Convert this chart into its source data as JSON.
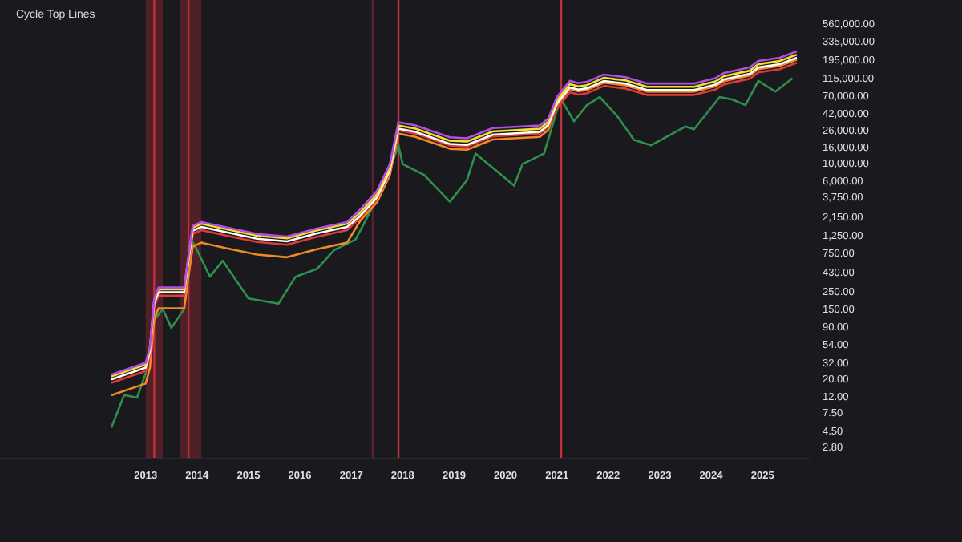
{
  "chart_data": {
    "type": "line",
    "title": "Cycle Top Lines",
    "x": [
      "2012-05",
      "2013-01",
      "2013-02",
      "2013-03",
      "2013-04",
      "2013-10",
      "2013-11",
      "2013-12",
      "2014-02",
      "2014-08",
      "2015-03",
      "2015-10",
      "2016-05",
      "2016-12",
      "2017-03",
      "2017-07",
      "2017-10",
      "2017-12",
      "2018-04",
      "2018-12",
      "2019-04",
      "2019-10",
      "2020-09",
      "2020-11",
      "2021-01",
      "2021-04",
      "2021-06",
      "2021-08",
      "2021-12",
      "2022-05",
      "2022-10",
      "2023-09",
      "2024-02",
      "2024-04",
      "2024-10",
      "2024-12",
      "2025-05",
      "2025-09"
    ],
    "series": [
      {
        "color": "#2f8f4e",
        "x": [
          "2012-05",
          "2012-08",
          "2012-11",
          "2013-01",
          "2013-03",
          "2013-05",
          "2013-07",
          "2013-10",
          "2013-12",
          "2014-01",
          "2014-04",
          "2014-07",
          "2015-01",
          "2015-08",
          "2015-12",
          "2016-05",
          "2016-09",
          "2017-02",
          "2017-06",
          "2017-09",
          "2017-12",
          "2018-01",
          "2018-06",
          "2018-12",
          "2019-04",
          "2019-06",
          "2019-12",
          "2020-03",
          "2020-05",
          "2020-10",
          "2021-01",
          "2021-02",
          "2021-05",
          "2021-08",
          "2021-11",
          "2022-03",
          "2022-07",
          "2022-11",
          "2023-07",
          "2023-09",
          "2024-03",
          "2024-06",
          "2024-09",
          "2024-12",
          "2025-04",
          "2025-08"
        ],
        "values": [
          4.9,
          12.5,
          11.6,
          23.3,
          109,
          149,
          86.7,
          149,
          1030,
          815,
          378,
          600,
          202,
          174,
          378,
          475,
          815,
          1110,
          2820,
          5800,
          16700,
          9730,
          7130,
          3280,
          6110,
          13200,
          7130,
          5220,
          9730,
          13200,
          45600,
          62200,
          33400,
          53200,
          67100,
          39200,
          19500,
          16700,
          28700,
          26500,
          67100,
          62200,
          53200,
          107000,
          78500,
          115600
        ]
      },
      {
        "color": "#f08a24",
        "values": [
          12.4,
          17.4,
          27.5,
          111,
          152,
          152,
          385,
          902,
          1010,
          858,
          715,
          663,
          836,
          1010,
          1870,
          3230,
          7010,
          23400,
          21300,
          15100,
          14700,
          19700,
          21300,
          26000,
          53000,
          84500,
          79000,
          82200,
          101500,
          94000,
          78300,
          78300,
          91300,
          106300,
          124700,
          149900,
          164600,
          198000
        ]
      },
      {
        "color": "#e23a3a",
        "values": [
          17.8,
          25,
          39.5,
          160,
          219,
          219,
          553,
          1300,
          1450,
          1230,
          1030,
          952,
          1200,
          1450,
          2050,
          3540,
          7690,
          25700,
          23400,
          16600,
          16100,
          21600,
          23400,
          28500,
          48300,
          77000,
          72000,
          74900,
          92500,
          85700,
          71400,
          71400,
          83200,
          96900,
          113600,
          136600,
          150000,
          180400
        ]
      },
      {
        "color": "#ffffff",
        "values": [
          19.6,
          27.5,
          43.5,
          176,
          241,
          241,
          609,
          1430,
          1590,
          1360,
          1130,
          1050,
          1320,
          1590,
          2160,
          3720,
          8080,
          27000,
          24600,
          17400,
          16900,
          22700,
          24600,
          30000,
          55700,
          88800,
          83000,
          86300,
          106700,
          98800,
          82300,
          82300,
          95900,
          111700,
          131000,
          157500,
          173000,
          208000
        ]
      },
      {
        "color": "#f2e22a",
        "values": [
          21.4,
          30,
          47.5,
          192,
          263,
          263,
          665,
          1560,
          1740,
          1480,
          1235,
          1145,
          1440,
          1740,
          2370,
          4080,
          8850,
          29600,
          26900,
          19100,
          18600,
          24900,
          26900,
          32900,
          61100,
          97400,
          91000,
          94600,
          116900,
          108300,
          90200,
          90200,
          105200,
          122500,
          143600,
          172600,
          189600,
          228000
        ]
      },
      {
        "color": "#b44de6",
        "values": [
          22.5,
          31.6,
          50,
          202,
          277,
          277,
          700,
          1640,
          1830,
          1560,
          1300,
          1205,
          1520,
          1830,
          2600,
          4480,
          9730,
          32500,
          29600,
          21000,
          20400,
          27400,
          29600,
          36100,
          67100,
          107000,
          100000,
          104000,
          128500,
          119000,
          99100,
          99100,
          115600,
          134600,
          157800,
          189700,
          208400,
          250600
        ]
      }
    ],
    "log": true,
    "xlim": [
      "2010-03",
      "2025-12"
    ],
    "xticks": [
      "2013",
      "2014",
      "2015",
      "2016",
      "2017",
      "2018",
      "2019",
      "2020",
      "2021",
      "2022",
      "2023",
      "2024",
      "2025"
    ],
    "ylim": [
      2,
      1100000
    ],
    "yticks": [
      {
        "value": 2.8,
        "label": "2.80"
      },
      {
        "value": 4.5,
        "label": "4.50"
      },
      {
        "value": 7.5,
        "label": "7.50"
      },
      {
        "value": 12,
        "label": "12.00"
      },
      {
        "value": 20,
        "label": "20.00"
      },
      {
        "value": 32,
        "label": "32.00"
      },
      {
        "value": 54,
        "label": "54.00"
      },
      {
        "value": 90,
        "label": "90.00"
      },
      {
        "value": 150,
        "label": "150.00"
      },
      {
        "value": 250,
        "label": "250.00"
      },
      {
        "value": 430,
        "label": "430.00"
      },
      {
        "value": 750,
        "label": "750.00"
      },
      {
        "value": 1250,
        "label": "1,250.00"
      },
      {
        "value": 2150,
        "label": "2,150.00"
      },
      {
        "value": 3750,
        "label": "3,750.00"
      },
      {
        "value": 6000,
        "label": "6,000.00"
      },
      {
        "value": 10000,
        "label": "10,000.00"
      },
      {
        "value": 16000,
        "label": "16,000.00"
      },
      {
        "value": 26000,
        "label": "26,000.00"
      },
      {
        "value": 42000,
        "label": "42,000.00"
      },
      {
        "value": 70000,
        "label": "70,000.00"
      },
      {
        "value": 115000,
        "label": "115,000.00"
      },
      {
        "value": 195000,
        "label": "195,000.00"
      },
      {
        "value": 335000,
        "label": "335,000.00"
      },
      {
        "value": 560000,
        "label": "560,000.00"
      }
    ],
    "bands": [
      {
        "axis": "x",
        "from": "2013-01",
        "to": "2013-05",
        "color": "#5e2229"
      },
      {
        "axis": "x",
        "from": "2013-09",
        "to": "2014-02",
        "color": "#5e2229"
      }
    ],
    "ref_lines": [
      {
        "axis": "x",
        "value": "2013-03",
        "color": "#c0303f"
      },
      {
        "axis": "x",
        "value": "2013-11",
        "color": "#c0303f"
      },
      {
        "axis": "x",
        "value": "2017-06",
        "color": "#5a2030"
      },
      {
        "axis": "x",
        "value": "2017-12",
        "color": "#c0303f"
      },
      {
        "axis": "x",
        "value": "2021-02",
        "color": "#c0303f"
      }
    ],
    "grid": false,
    "legend": false
  }
}
